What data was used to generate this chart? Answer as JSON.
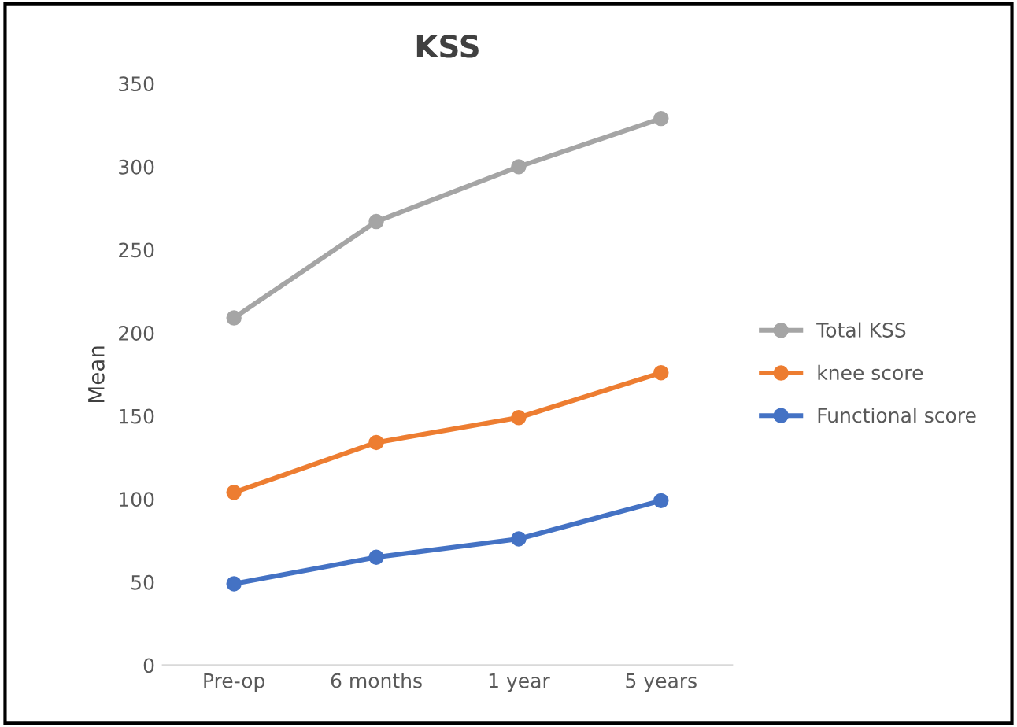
{
  "chart_data": {
    "type": "line",
    "title": "KSS",
    "ylabel": "Mean",
    "categories": [
      "Pre-op",
      "6 months",
      "1 year",
      "5 years"
    ],
    "series": [
      {
        "name": "Total KSS",
        "color": "#a5a5a5",
        "values": [
          209,
          267,
          300,
          329
        ]
      },
      {
        "name": "knee score",
        "color": "#ed7d31",
        "values": [
          104,
          134,
          149,
          176
        ]
      },
      {
        "name": "Functional score",
        "color": "#4472c4",
        "values": [
          49,
          65,
          76,
          99
        ]
      }
    ],
    "ylim": [
      0,
      350
    ],
    "yticks": [
      0,
      50,
      100,
      150,
      200,
      250,
      300,
      350
    ],
    "grid": false,
    "legend": "right",
    "marker": "circle",
    "line_style": "solid"
  }
}
